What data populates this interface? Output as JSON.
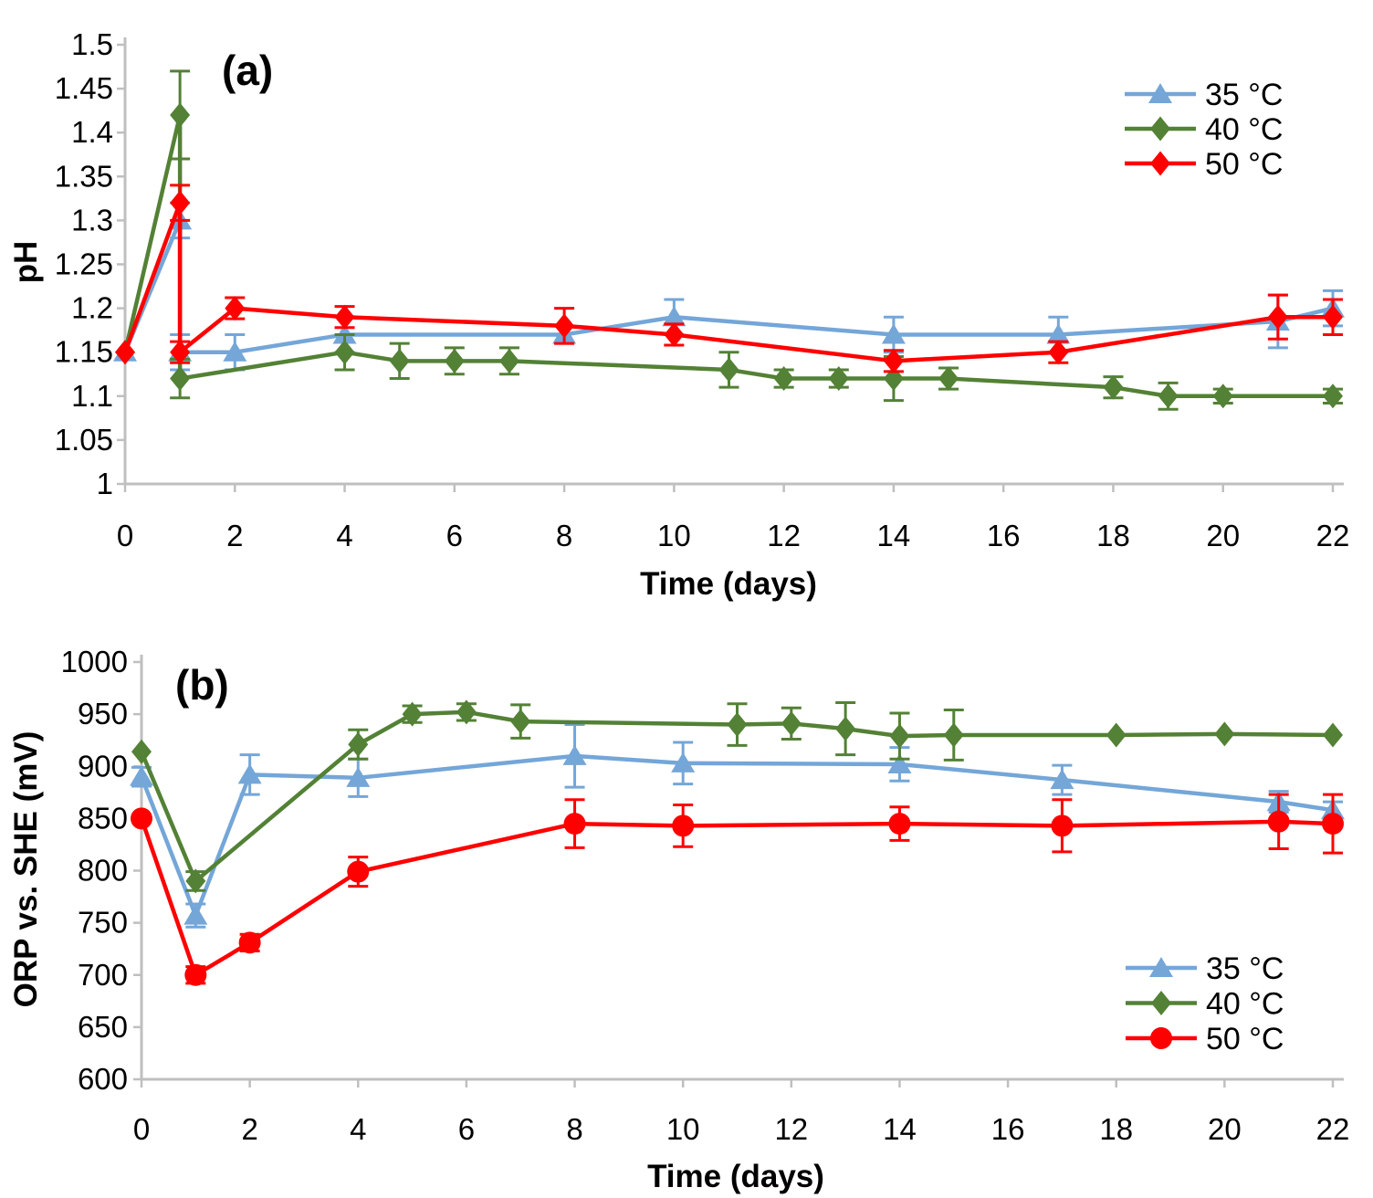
{
  "figure": {
    "background": "#FFFFFF",
    "axis_color": "#BFBFBF",
    "text_color": "#000000"
  },
  "chart_data": [
    {
      "id": "a",
      "type": "line",
      "panel_label": "(a)",
      "xlabel": "Time (days)",
      "ylabel": "pH",
      "xlim": [
        0,
        22
      ],
      "ylim": [
        1.0,
        1.5
      ],
      "xticks": [
        0,
        2,
        4,
        6,
        8,
        10,
        12,
        14,
        16,
        18,
        20,
        22
      ],
      "ytick_values": [
        1,
        1.05,
        1.1,
        1.15,
        1.2,
        1.25,
        1.3,
        1.35,
        1.4,
        1.45,
        1.5
      ],
      "ytick_labels": [
        "1",
        "1.05",
        "1.1",
        "1.15",
        "1.2",
        "1.25",
        "1.3",
        "1.35",
        "1.4",
        "1.45",
        "1.5"
      ],
      "grid": false,
      "legend_position": "top-right",
      "series": [
        {
          "name": "35 °C",
          "color": "#74A6D8",
          "marker": "triangle",
          "x": [
            0,
            1,
            1,
            2,
            4,
            8,
            10,
            14,
            17,
            21,
            22
          ],
          "y": [
            1.15,
            1.3,
            1.15,
            1.15,
            1.17,
            1.17,
            1.19,
            1.17,
            1.17,
            1.185,
            1.2
          ],
          "yerr": [
            0,
            0.02,
            0.02,
            0.02,
            0.02,
            0.01,
            0.02,
            0.02,
            0.02,
            0.03,
            0.02
          ]
        },
        {
          "name": "40 °C",
          "color": "#538135",
          "marker": "diamond",
          "x": [
            0,
            1,
            1,
            4,
            5,
            6,
            7,
            11,
            12,
            13,
            14,
            15,
            18,
            19,
            20,
            22
          ],
          "y": [
            1.15,
            1.42,
            1.12,
            1.15,
            1.14,
            1.14,
            1.14,
            1.13,
            1.12,
            1.12,
            1.12,
            1.12,
            1.11,
            1.1,
            1.1,
            1.1
          ],
          "yerr": [
            0,
            0.05,
            0.022,
            0.02,
            0.02,
            0.015,
            0.015,
            0.02,
            0.01,
            0.01,
            0.025,
            0.012,
            0.012,
            0.015,
            0.008,
            0.008
          ]
        },
        {
          "name": "50 °C",
          "color": "#FF0000",
          "marker": "diamond",
          "x": [
            0,
            1,
            1,
            2,
            4,
            8,
            10,
            14,
            17,
            21,
            22
          ],
          "y": [
            1.15,
            1.32,
            1.15,
            1.2,
            1.19,
            1.18,
            1.17,
            1.14,
            1.15,
            1.19,
            1.19
          ],
          "yerr": [
            0,
            0.02,
            0.012,
            0.012,
            0.012,
            0.02,
            0.012,
            0.012,
            0.012,
            0.025,
            0.02
          ]
        }
      ]
    },
    {
      "id": "b",
      "type": "line",
      "panel_label": "(b)",
      "xlabel": "Time (days)",
      "ylabel": "ORP vs. SHE (mV)",
      "xlim": [
        0,
        22
      ],
      "ylim": [
        600,
        1000
      ],
      "xticks": [
        0,
        2,
        4,
        6,
        8,
        10,
        12,
        14,
        16,
        18,
        20,
        22
      ],
      "ytick_values": [
        600,
        650,
        700,
        750,
        800,
        850,
        900,
        950,
        1000
      ],
      "ytick_labels": [
        "600",
        "650",
        "700",
        "750",
        "800",
        "850",
        "900",
        "950",
        "1000"
      ],
      "grid": false,
      "legend_position": "bottom-right",
      "series": [
        {
          "name": "35 °C",
          "color": "#74A6D8",
          "marker": "triangle",
          "x": [
            0,
            1,
            2,
            4,
            8,
            10,
            14,
            17,
            21,
            22
          ],
          "y": [
            890,
            757,
            892,
            889,
            910,
            903,
            902,
            887,
            866,
            858
          ],
          "yerr": [
            9,
            11,
            19,
            18,
            30,
            20,
            16,
            14,
            10,
            8
          ]
        },
        {
          "name": "40 °C",
          "color": "#538135",
          "marker": "diamond",
          "x": [
            0,
            1,
            4,
            5,
            6,
            7,
            11,
            12,
            13,
            14,
            15,
            18,
            20,
            22
          ],
          "y": [
            914,
            790,
            921,
            950,
            952,
            943,
            940,
            941,
            936,
            929,
            930,
            930,
            931,
            930
          ],
          "yerr": [
            0,
            9,
            14,
            8,
            8,
            16,
            20,
            15,
            25,
            22,
            24,
            0,
            0,
            0
          ]
        },
        {
          "name": "50 °C",
          "color": "#FF0000",
          "marker": "circle",
          "x": [
            0,
            1,
            2,
            4,
            8,
            10,
            14,
            17,
            21,
            22
          ],
          "y": [
            850,
            700,
            731,
            799,
            845,
            843,
            845,
            843,
            847,
            845
          ],
          "yerr": [
            0,
            8,
            8,
            14,
            23,
            20,
            16,
            25,
            26,
            28
          ]
        }
      ]
    }
  ]
}
